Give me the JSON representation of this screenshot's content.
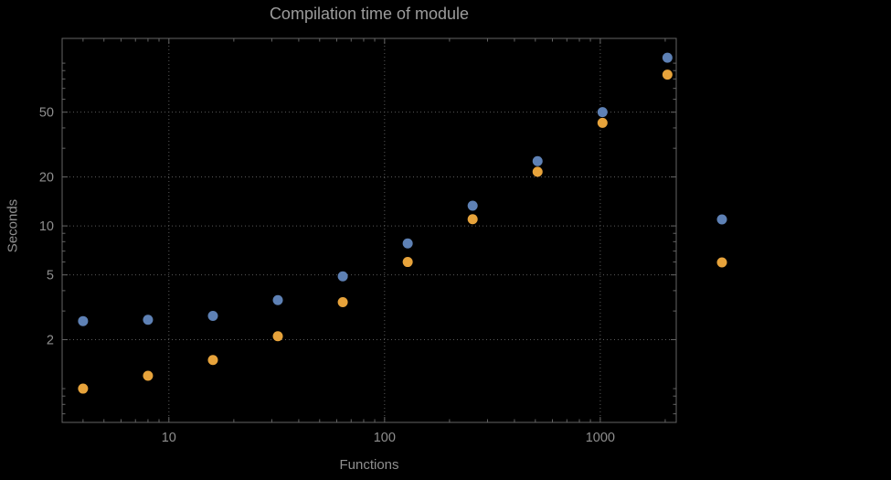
{
  "window": {
    "background": "#000000"
  },
  "chart_data": {
    "type": "scatter",
    "title": "Compilation time of module",
    "xlabel": "Functions",
    "ylabel": "Seconds",
    "x_scale": "log",
    "y_scale": "log",
    "xlim": [
      3.2,
      2250
    ],
    "ylim": [
      0.62,
      142
    ],
    "x_ticks": [
      10,
      100,
      1000
    ],
    "x_tick_labels": [
      "10",
      "100",
      "1000"
    ],
    "y_ticks": [
      2,
      5,
      10,
      20,
      50
    ],
    "y_tick_labels": [
      "2",
      "5",
      "10",
      "20",
      "50"
    ],
    "grid": "dotted gridlines at major ticks",
    "legend_position": "right outside frame, colored markers only (no visible label text)",
    "x": [
      4,
      8,
      16,
      32,
      64,
      128,
      256,
      512,
      1024,
      2048
    ],
    "series": [
      {
        "name": "blue",
        "color": "#5E81B5",
        "values": [
          2.6,
          2.65,
          2.8,
          3.5,
          4.9,
          7.8,
          13.3,
          25,
          50,
          108
        ]
      },
      {
        "name": "orange",
        "color": "#E7A33B",
        "values": [
          1.0,
          1.2,
          1.5,
          2.1,
          3.4,
          6.0,
          11.0,
          21.5,
          43,
          85
        ]
      }
    ],
    "colors": {
      "background": "#000000",
      "frame": "#646464",
      "grid": "#5a5a5a",
      "text": "#8f8f8f",
      "title": "#9c9c9c",
      "series_blue": "#5E81B5",
      "series_orange": "#E7A33B"
    }
  }
}
